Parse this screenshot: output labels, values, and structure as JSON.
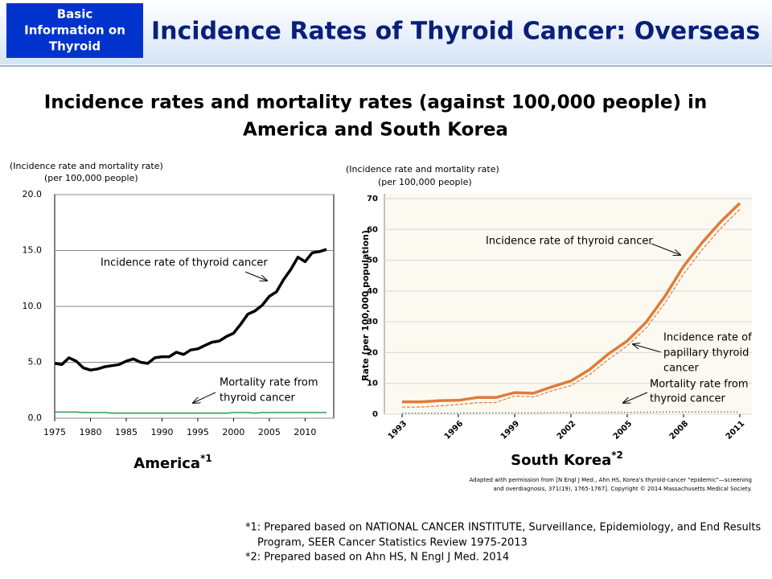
{
  "header": {
    "section_lines": [
      "Basic",
      "Information on",
      "Thyroid"
    ],
    "title": "Incidence Rates of Thyroid Cancer: Overseas"
  },
  "slide_title_lines": [
    "Incidence rates and mortality rates (against 100,000 people) in",
    "America and South Korea"
  ],
  "chart_data": [
    {
      "type": "line",
      "caption": "America",
      "caption_note": "*1",
      "ylabel_lines": [
        "(Incidence rate and mortality rate)",
        "(per 100,000 people)"
      ],
      "x": [
        1975,
        1976,
        1977,
        1978,
        1979,
        1980,
        1981,
        1982,
        1983,
        1984,
        1985,
        1986,
        1987,
        1988,
        1989,
        1990,
        1991,
        1992,
        1993,
        1994,
        1995,
        1996,
        1997,
        1998,
        1999,
        2000,
        2001,
        2002,
        2003,
        2004,
        2005,
        2006,
        2007,
        2008,
        2009,
        2010,
        2011,
        2012,
        2013
      ],
      "series": [
        {
          "name": "Incidence rate of thyroid cancer",
          "color": "#000000",
          "dash": "solid",
          "width": 3.5,
          "values": [
            4.9,
            4.8,
            5.4,
            5.1,
            4.5,
            4.3,
            4.4,
            4.6,
            4.7,
            4.8,
            5.1,
            5.3,
            5.0,
            4.9,
            5.4,
            5.5,
            5.5,
            5.9,
            5.7,
            6.1,
            6.2,
            6.5,
            6.8,
            6.9,
            7.3,
            7.6,
            8.4,
            9.3,
            9.6,
            10.1,
            10.9,
            11.3,
            12.4,
            13.3,
            14.4,
            14.0,
            14.8,
            14.9,
            15.1
          ]
        },
        {
          "name": "Mortality rate from thyroid cancer",
          "color": "#22a050",
          "dash": "solid",
          "width": 1.5,
          "values": [
            0.55,
            0.55,
            0.55,
            0.55,
            0.5,
            0.5,
            0.5,
            0.5,
            0.45,
            0.45,
            0.45,
            0.45,
            0.45,
            0.45,
            0.45,
            0.45,
            0.45,
            0.45,
            0.45,
            0.45,
            0.45,
            0.45,
            0.45,
            0.45,
            0.45,
            0.5,
            0.5,
            0.5,
            0.45,
            0.5,
            0.5,
            0.5,
            0.5,
            0.5,
            0.5,
            0.5,
            0.5,
            0.5,
            0.5
          ]
        }
      ],
      "annotations": [
        {
          "lines": [
            "Incidence rate of thyroid cancer"
          ]
        },
        {
          "lines": [
            "Mortality rate from",
            "thyroid cancer"
          ]
        }
      ],
      "xlim": [
        1975,
        2014
      ],
      "xticks": [
        1975,
        1980,
        1985,
        1990,
        1995,
        2000,
        2005,
        2010
      ],
      "ylim": [
        0,
        20
      ],
      "yticks": [
        {
          "value": 0,
          "label": "0.0"
        },
        {
          "value": 5,
          "label": "5.0"
        },
        {
          "value": 10,
          "label": "10.0"
        },
        {
          "value": 15,
          "label": "15.0"
        },
        {
          "value": 20,
          "label": "20.0"
        }
      ],
      "grid": true
    },
    {
      "type": "line",
      "caption": "South Korea",
      "caption_note": "*2",
      "ylabel_lines": [
        "(Incidence rate and mortality rate)",
        "(per 100,000 people)"
      ],
      "y_axis_title": "Rate (per 100,000 population)",
      "source_lines": [
        "Adapted with permission from [N Engl J Med., Ahn HS, Korea's thyroid-cancer \"epidemic\"—screening",
        "and overdiagnosis, 371(19), 1765-1767]. Copyright © 2014 Massachusetts Medical Society."
      ],
      "x": [
        1993,
        1994,
        1995,
        1996,
        1997,
        1998,
        1999,
        2000,
        2001,
        2002,
        2003,
        2004,
        2005,
        2006,
        2007,
        2008,
        2009,
        2010,
        2011
      ],
      "series": [
        {
          "name": "Incidence rate of thyroid cancer",
          "color": "#e07b39",
          "dash": "solid",
          "width": 3.5,
          "values": [
            4.0,
            4.0,
            4.4,
            4.5,
            5.4,
            5.4,
            7.0,
            6.8,
            8.9,
            10.8,
            14.5,
            19.6,
            23.8,
            29.8,
            38.2,
            48.0,
            55.8,
            62.6,
            68.5
          ]
        },
        {
          "name": "Incidence rate of papillary thyroid cancer",
          "color": "#e07b39",
          "dash": "dashed",
          "width": 1.2,
          "values": [
            2.3,
            2.3,
            2.7,
            3.1,
            3.7,
            3.8,
            5.9,
            5.6,
            7.6,
            9.3,
            12.9,
            17.8,
            22.2,
            27.9,
            36.0,
            45.5,
            53.5,
            60.5,
            66.5
          ]
        },
        {
          "name": "Mortality rate from thyroid cancer",
          "color": "#6a8a6a",
          "dash": "dotted",
          "width": 1.5,
          "values": [
            0.3,
            0.3,
            0.3,
            0.3,
            0.4,
            0.4,
            0.4,
            0.4,
            0.5,
            0.5,
            0.5,
            0.6,
            0.6,
            0.6,
            0.7,
            0.7,
            0.7,
            0.7,
            0.7
          ]
        }
      ],
      "annotations": [
        {
          "lines": [
            "Incidence rate of thyroid cancer"
          ]
        },
        {
          "lines": [
            "Incidence rate of",
            "papillary thyroid",
            "cancer"
          ]
        },
        {
          "lines": [
            "Mortality rate from",
            "thyroid cancer"
          ]
        }
      ],
      "xlim": [
        1993,
        2011
      ],
      "xticks": [
        1993,
        1996,
        1999,
        2002,
        2005,
        2008,
        2011
      ],
      "ylim": [
        0,
        70
      ],
      "yticks": [
        0,
        10,
        20,
        30,
        40,
        50,
        60,
        70
      ],
      "grid": true
    }
  ],
  "footnotes": [
    "*1: Prepared based on NATIONAL CANCER INSTITUTE, Surveillance, Epidemiology, and End Results",
    "Program, SEER Cancer Statistics Review 1975-2013",
    "*2: Prepared based on Ahn HS, N Engl J Med. 2014"
  ]
}
